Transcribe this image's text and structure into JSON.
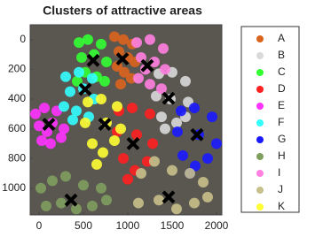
{
  "chart_data": {
    "type": "scatter",
    "title": "Clusters of attractive areas",
    "xlim": [
      -100,
      2060
    ],
    "ylim": [
      -100,
      1180
    ],
    "y_reversed": true,
    "xticks": [
      0,
      500,
      1000,
      1500,
      2000
    ],
    "yticks": [
      0,
      200,
      400,
      600,
      800,
      1000
    ],
    "legend": "outside-right",
    "series": [
      {
        "name": "A",
        "color": "#d9641e",
        "x": [
          850,
          950,
          1050,
          900,
          1000,
          880,
          960,
          1040,
          920,
          1080
        ],
        "y": [
          -20,
          0,
          30,
          80,
          120,
          180,
          220,
          260,
          300,
          150
        ]
      },
      {
        "name": "B",
        "color": "#d9d9d9",
        "x": [
          1350,
          1500,
          1650,
          1320,
          1480,
          1680,
          1380,
          1550,
          1650,
          1420
        ],
        "y": [
          230,
          220,
          280,
          380,
          400,
          420,
          520,
          560,
          520,
          600
        ]
      },
      {
        "name": "C",
        "color": "#33ff33",
        "x": [
          450,
          550,
          700,
          480,
          620,
          760,
          520,
          650,
          740,
          430
        ],
        "y": [
          20,
          0,
          30,
          120,
          100,
          150,
          220,
          250,
          280,
          280
        ]
      },
      {
        "name": "D",
        "color": "#ff2020",
        "x": [
          900,
          1050,
          1250,
          880,
          1100,
          1280,
          950,
          1080,
          1220,
          1000
        ],
        "y": [
          480,
          460,
          500,
          620,
          640,
          700,
          800,
          880,
          820,
          940
        ]
      },
      {
        "name": "E",
        "color": "#ff33ff",
        "x": [
          -40,
          60,
          200,
          0,
          150,
          280,
          30,
          130,
          250,
          90
        ],
        "y": [
          500,
          460,
          480,
          580,
          560,
          600,
          680,
          700,
          660,
          620
        ]
      },
      {
        "name": "F",
        "color": "#33ffff",
        "x": [
          300,
          450,
          600,
          350,
          500,
          620,
          280,
          420,
          560,
          380
        ],
        "y": [
          250,
          220,
          260,
          350,
          330,
          400,
          450,
          480,
          520,
          540
        ]
      },
      {
        "name": "G",
        "color": "#1a1aff",
        "x": [
          1600,
          1750,
          1950,
          1560,
          1800,
          2000,
          1620,
          1760,
          1900,
          1700
        ],
        "y": [
          480,
          460,
          520,
          620,
          640,
          700,
          780,
          850,
          800,
          900
        ]
      },
      {
        "name": "H",
        "color": "#7f9f5f",
        "x": [
          20,
          150,
          300,
          500,
          700,
          80,
          250,
          420,
          600,
          760
        ],
        "y": [
          1000,
          950,
          920,
          980,
          1000,
          1120,
          1100,
          1140,
          1120,
          1080
        ]
      },
      {
        "name": "I",
        "color": "#ff80e0",
        "x": [
          1100,
          1250,
          1400,
          1150,
          1300,
          1420,
          1120,
          1250,
          1380,
          1200
        ],
        "y": [
          20,
          0,
          60,
          120,
          150,
          200,
          260,
          300,
          330,
          200
        ]
      },
      {
        "name": "J",
        "color": "#c8c08a",
        "x": [
          1150,
          1300,
          1500,
          1700,
          1850,
          1120,
          1350,
          1550,
          1750,
          1900
        ],
        "y": [
          900,
          820,
          880,
          900,
          960,
          1100,
          1080,
          1140,
          1100,
          1060
        ]
      },
      {
        "name": "K",
        "color": "#ffff33",
        "x": [
          550,
          700,
          880,
          520,
          760,
          920,
          600,
          720,
          850,
          650
        ],
        "y": [
          420,
          400,
          450,
          560,
          560,
          600,
          700,
          760,
          680,
          840
        ]
      }
    ],
    "centroids": {
      "x": [
        940,
        1460,
        610,
        1060,
        110,
        520,
        1780,
        360,
        1220,
        1460,
        740
      ],
      "y": [
        130,
        395,
        140,
        700,
        570,
        335,
        640,
        1080,
        175,
        1060,
        570
      ]
    }
  }
}
